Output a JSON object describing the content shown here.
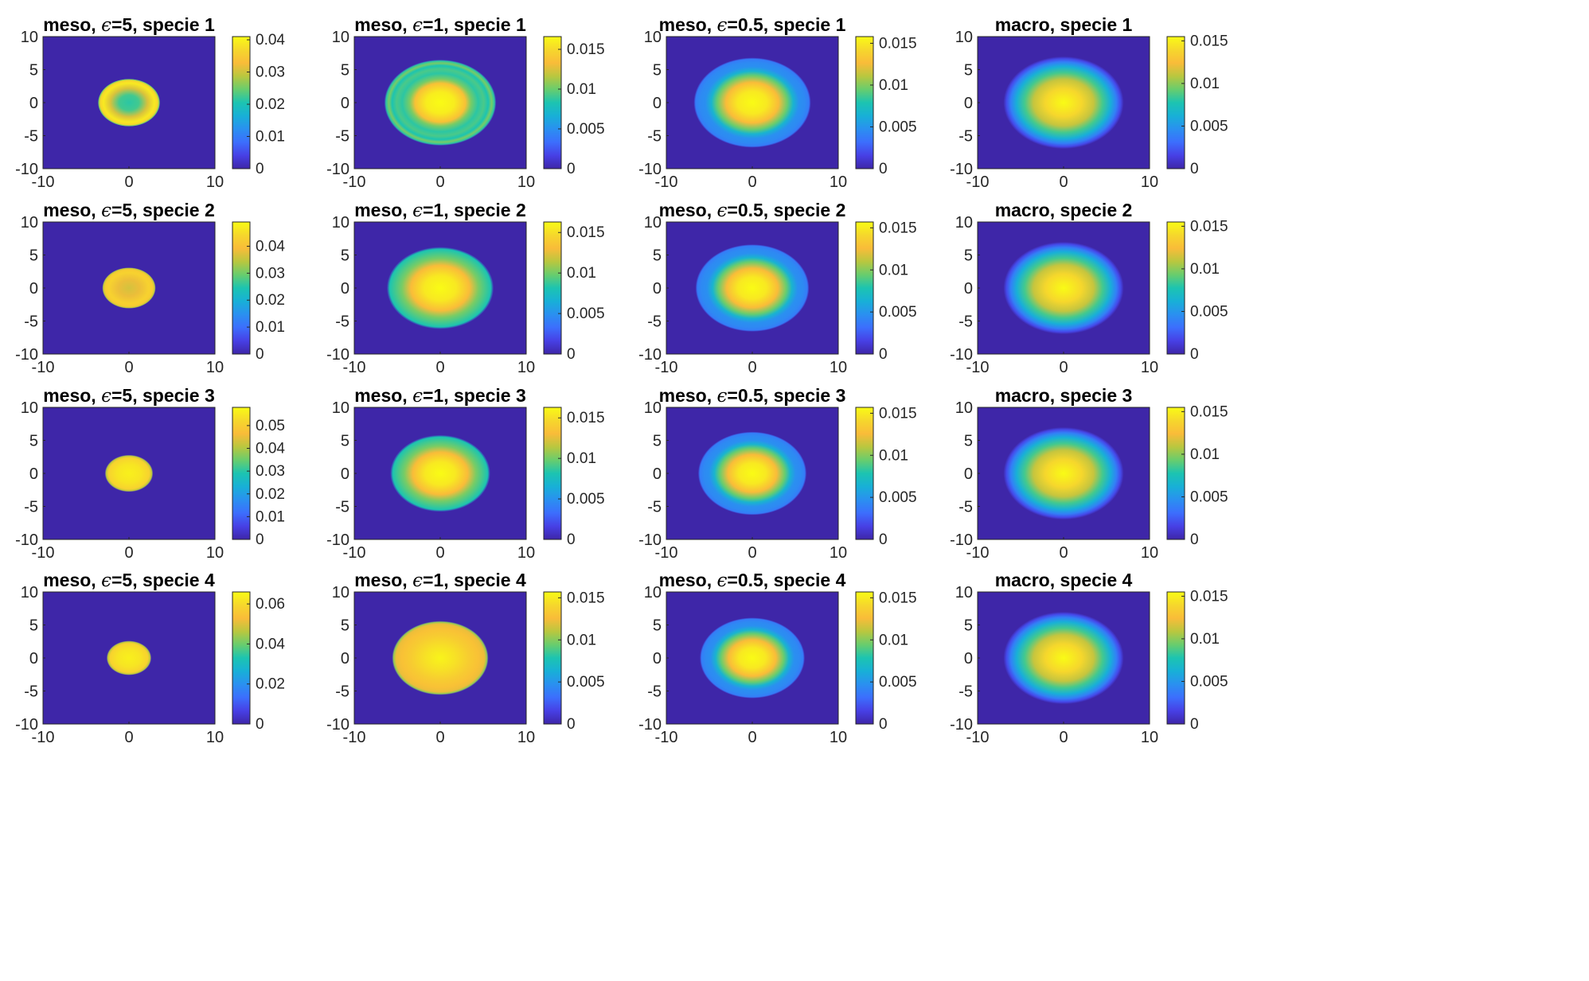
{
  "chart_data": {
    "type": "heatmap",
    "layout": {
      "rows": 4,
      "cols": 4
    },
    "colormap": "parula",
    "colors": {
      "background": "#ffffff",
      "axis": "#262626",
      "low": "#3e26a8",
      "high": "#f9fb15"
    },
    "panels": [
      {
        "title_prefix": "meso, ",
        "eps_symbol": "ϵ",
        "title_suffix": "=5, specie 1",
        "label": "meso, ϵ=5, specie 1",
        "model": "meso",
        "epsilon": 5,
        "specie": 1,
        "profile": "ring",
        "radius": 3.6,
        "cmax": 0.041,
        "cbar_ticks": [
          0,
          0.01,
          0.02,
          0.03,
          0.04
        ],
        "cbar_labels": [
          "0",
          "0.01",
          "0.02",
          "0.03",
          "0.04"
        ]
      },
      {
        "title_prefix": "meso, ",
        "eps_symbol": "ϵ",
        "title_suffix": "=1, specie 1",
        "label": "meso, ϵ=1, specie 1",
        "model": "meso",
        "epsilon": 1,
        "specie": 1,
        "profile": "rings",
        "radius": 6.5,
        "cmax": 0.0166,
        "cbar_ticks": [
          0,
          0.005,
          0.01,
          0.015
        ],
        "cbar_labels": [
          "0",
          "0.005",
          "0.01",
          "0.015"
        ]
      },
      {
        "title_prefix": "meso, ",
        "eps_symbol": "ϵ",
        "title_suffix": "=0.5, specie 1",
        "label": "meso, ϵ=0.5, specie 1",
        "model": "meso",
        "epsilon": 0.5,
        "specie": 1,
        "profile": "halo",
        "radius": 6.8,
        "cmax": 0.0158,
        "cbar_ticks": [
          0,
          0.005,
          0.01,
          0.015
        ],
        "cbar_labels": [
          "0",
          "0.005",
          "0.01",
          "0.015"
        ]
      },
      {
        "title_prefix": "macro, specie 1",
        "eps_symbol": "",
        "title_suffix": "",
        "label": "macro, specie 1",
        "model": "macro",
        "epsilon": null,
        "specie": 1,
        "profile": "smooth",
        "radius": 7.0,
        "cmax": 0.0155,
        "cbar_ticks": [
          0,
          0.005,
          0.01,
          0.015
        ],
        "cbar_labels": [
          "0",
          "0.005",
          "0.01",
          "0.015"
        ]
      },
      {
        "title_prefix": "meso, ",
        "eps_symbol": "ϵ",
        "title_suffix": "=5, specie 2",
        "label": "meso, ϵ=5, specie 2",
        "model": "meso",
        "epsilon": 5,
        "specie": 2,
        "profile": "dip",
        "radius": 3.1,
        "cmax": 0.049,
        "cbar_ticks": [
          0,
          0.01,
          0.02,
          0.03,
          0.04
        ],
        "cbar_labels": [
          "0",
          "0.01",
          "0.02",
          "0.03",
          "0.04"
        ]
      },
      {
        "title_prefix": "meso, ",
        "eps_symbol": "ϵ",
        "title_suffix": "=1, specie 2",
        "label": "meso, ϵ=1, specie 2",
        "model": "meso",
        "epsilon": 1,
        "specie": 2,
        "profile": "flat",
        "radius": 6.2,
        "cmax": 0.0163,
        "cbar_ticks": [
          0,
          0.005,
          0.01,
          0.015
        ],
        "cbar_labels": [
          "0",
          "0.005",
          "0.01",
          "0.015"
        ]
      },
      {
        "title_prefix": "meso, ",
        "eps_symbol": "ϵ",
        "title_suffix": "=0.5, specie 2",
        "label": "meso, ϵ=0.5, specie 2",
        "model": "meso",
        "epsilon": 0.5,
        "specie": 2,
        "profile": "halo",
        "radius": 6.6,
        "cmax": 0.0157,
        "cbar_ticks": [
          0,
          0.005,
          0.01,
          0.015
        ],
        "cbar_labels": [
          "0",
          "0.005",
          "0.01",
          "0.015"
        ]
      },
      {
        "title_prefix": "macro, specie 2",
        "eps_symbol": "",
        "title_suffix": "",
        "label": "macro, specie 2",
        "model": "macro",
        "epsilon": null,
        "specie": 2,
        "profile": "smooth",
        "radius": 7.0,
        "cmax": 0.0155,
        "cbar_ticks": [
          0,
          0.005,
          0.01,
          0.015
        ],
        "cbar_labels": [
          "0",
          "0.005",
          "0.01",
          "0.015"
        ]
      },
      {
        "title_prefix": "meso, ",
        "eps_symbol": "ϵ",
        "title_suffix": "=5, specie 3",
        "label": "meso, ϵ=5, specie 3",
        "model": "meso",
        "epsilon": 5,
        "specie": 3,
        "profile": "solid",
        "radius": 2.8,
        "cmax": 0.058,
        "cbar_ticks": [
          0,
          0.01,
          0.02,
          0.03,
          0.04,
          0.05
        ],
        "cbar_labels": [
          "0",
          "0.01",
          "0.02",
          "0.03",
          "0.04",
          "0.05"
        ]
      },
      {
        "title_prefix": "meso, ",
        "eps_symbol": "ϵ",
        "title_suffix": "=1, specie 3",
        "label": "meso, ϵ=1, specie 3",
        "model": "meso",
        "epsilon": 1,
        "specie": 3,
        "profile": "flat",
        "radius": 5.8,
        "cmax": 0.0163,
        "cbar_ticks": [
          0,
          0.005,
          0.01,
          0.015
        ],
        "cbar_labels": [
          "0",
          "0.005",
          "0.01",
          "0.015"
        ]
      },
      {
        "title_prefix": "meso, ",
        "eps_symbol": "ϵ",
        "title_suffix": "=0.5, specie 3",
        "label": "meso, ϵ=0.5, specie 3",
        "model": "meso",
        "epsilon": 0.5,
        "specie": 3,
        "profile": "halo",
        "radius": 6.3,
        "cmax": 0.0157,
        "cbar_ticks": [
          0,
          0.005,
          0.01,
          0.015
        ],
        "cbar_labels": [
          "0",
          "0.005",
          "0.01",
          "0.015"
        ]
      },
      {
        "title_prefix": "macro, specie 3",
        "eps_symbol": "",
        "title_suffix": "",
        "label": "macro, specie 3",
        "model": "macro",
        "epsilon": null,
        "specie": 3,
        "profile": "smooth",
        "radius": 7.0,
        "cmax": 0.0155,
        "cbar_ticks": [
          0,
          0.005,
          0.01,
          0.015
        ],
        "cbar_labels": [
          "0",
          "0.005",
          "0.01",
          "0.015"
        ]
      },
      {
        "title_prefix": "meso, ",
        "eps_symbol": "ϵ",
        "title_suffix": "=5, specie 4",
        "label": "meso, ϵ=5, specie 4",
        "model": "meso",
        "epsilon": 5,
        "specie": 4,
        "profile": "solid",
        "radius": 2.6,
        "cmax": 0.066,
        "cbar_ticks": [
          0,
          0.02,
          0.04,
          0.06
        ],
        "cbar_labels": [
          "0",
          "0.02",
          "0.04",
          "0.06"
        ]
      },
      {
        "title_prefix": "meso, ",
        "eps_symbol": "ϵ",
        "title_suffix": "=1, specie 4",
        "label": "meso, ϵ=1, specie 4",
        "model": "meso",
        "epsilon": 1,
        "specie": 4,
        "profile": "plateau",
        "radius": 5.6,
        "cmax": 0.0157,
        "cbar_ticks": [
          0,
          0.005,
          0.01,
          0.015
        ],
        "cbar_labels": [
          "0",
          "0.005",
          "0.01",
          "0.015"
        ]
      },
      {
        "title_prefix": "meso, ",
        "eps_symbol": "ϵ",
        "title_suffix": "=0.5, specie 4",
        "label": "meso, ϵ=0.5, specie 4",
        "model": "meso",
        "epsilon": 0.5,
        "specie": 4,
        "profile": "halo",
        "radius": 6.1,
        "cmax": 0.0157,
        "cbar_ticks": [
          0,
          0.005,
          0.01,
          0.015
        ],
        "cbar_labels": [
          "0",
          "0.005",
          "0.01",
          "0.015"
        ]
      },
      {
        "title_prefix": "macro, specie 4",
        "eps_symbol": "",
        "title_suffix": "",
        "label": "macro, specie 4",
        "model": "macro",
        "epsilon": null,
        "specie": 4,
        "profile": "smooth",
        "radius": 7.0,
        "cmax": 0.0155,
        "cbar_ticks": [
          0,
          0.005,
          0.01,
          0.015
        ],
        "cbar_labels": [
          "0",
          "0.005",
          "0.01",
          "0.015"
        ]
      }
    ],
    "xlim": [
      -10,
      10
    ],
    "ylim": [
      -10,
      10
    ],
    "xticks": [
      -10,
      0,
      10
    ],
    "xtick_labels": [
      "-10",
      "0",
      "10"
    ],
    "yticks": [
      10,
      5,
      0,
      -5,
      -10
    ],
    "ytick_labels": [
      "10",
      "5",
      "0",
      "-5",
      "-10"
    ],
    "xlabel": "",
    "ylabel": "",
    "grid": false
  }
}
